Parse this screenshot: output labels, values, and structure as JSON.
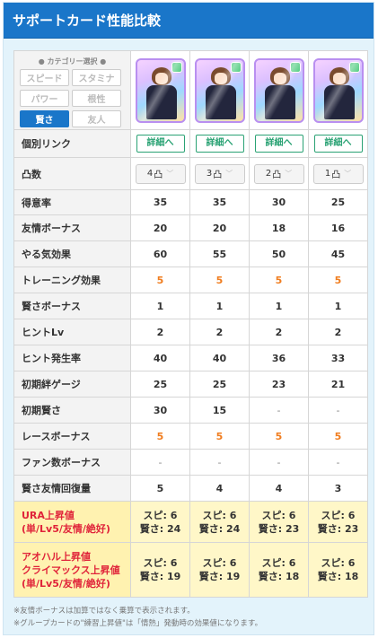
{
  "header": {
    "title": "サポートカード性能比較"
  },
  "category": {
    "title": "● カテゴリー選択 ●",
    "buttons": [
      {
        "label": "スピード",
        "active": false
      },
      {
        "label": "スタミナ",
        "active": false
      },
      {
        "label": "パワー",
        "active": false
      },
      {
        "label": "根性",
        "active": false
      },
      {
        "label": "賢さ",
        "active": true
      },
      {
        "label": "友人",
        "active": false
      }
    ]
  },
  "links": {
    "label": "個別リンク",
    "button": "詳細へ"
  },
  "limit": {
    "label": "凸数",
    "values": [
      "4",
      "3",
      "2",
      "1"
    ],
    "glyph": "凸"
  },
  "rows": [
    {
      "label": "得意率",
      "values": [
        "35",
        "35",
        "30",
        "25"
      ],
      "accent": false
    },
    {
      "label": "友情ボーナス",
      "values": [
        "20",
        "20",
        "18",
        "16"
      ],
      "accent": false
    },
    {
      "label": "やる気効果",
      "values": [
        "60",
        "55",
        "50",
        "45"
      ],
      "accent": false
    },
    {
      "label": "トレーニング効果",
      "values": [
        "5",
        "5",
        "5",
        "5"
      ],
      "accent": true
    },
    {
      "label": "賢さボーナス",
      "values": [
        "1",
        "1",
        "1",
        "1"
      ],
      "accent": false
    },
    {
      "label": "ヒントLv",
      "values": [
        "2",
        "2",
        "2",
        "2"
      ],
      "accent": false
    },
    {
      "label": "ヒント発生率",
      "values": [
        "40",
        "40",
        "36",
        "33"
      ],
      "accent": false
    },
    {
      "label": "初期絆ゲージ",
      "values": [
        "25",
        "25",
        "23",
        "21"
      ],
      "accent": false
    },
    {
      "label": "初期賢さ",
      "values": [
        "30",
        "15",
        "-",
        "-"
      ],
      "accent": false
    },
    {
      "label": "レースボーナス",
      "values": [
        "5",
        "5",
        "5",
        "5"
      ],
      "accent": true
    },
    {
      "label": "ファン数ボーナス",
      "values": [
        "-",
        "-",
        "-",
        "-"
      ],
      "accent": false
    },
    {
      "label": "賢さ友情回復量",
      "values": [
        "5",
        "4",
        "4",
        "3"
      ],
      "accent": false
    }
  ],
  "ura": {
    "label1": "URA上昇値",
    "label2": "(単/Lv5/友情/絶好)",
    "values": [
      {
        "l1": "スピ: 6",
        "l2": "賢さ: 24"
      },
      {
        "l1": "スピ: 6",
        "l2": "賢さ: 24"
      },
      {
        "l1": "スピ: 6",
        "l2": "賢さ: 23"
      },
      {
        "l1": "スピ: 6",
        "l2": "賢さ: 23"
      }
    ]
  },
  "aoharu": {
    "label1": "アオハル上昇値",
    "label2": "クライマックス上昇値",
    "label3": "(単/Lv5/友情/絶好)",
    "values": [
      {
        "l1": "スピ: 6",
        "l2": "賢さ: 19"
      },
      {
        "l1": "スピ: 6",
        "l2": "賢さ: 19"
      },
      {
        "l1": "スピ: 6",
        "l2": "賢さ: 18"
      },
      {
        "l1": "スピ: 6",
        "l2": "賢さ: 18"
      }
    ]
  },
  "footnotes": [
    "※友情ボーナスは加算ではなく乗算で表示されます。",
    "※グループカードの\"練習上昇値\"は「情熱」発動時の効果値になります。"
  ],
  "colors": {
    "header": "#1a76c9",
    "accent": "#f07d1f",
    "highlight_bg": "#fff7c8",
    "highlight_text": "#e0243a",
    "link": "#2aa274"
  }
}
